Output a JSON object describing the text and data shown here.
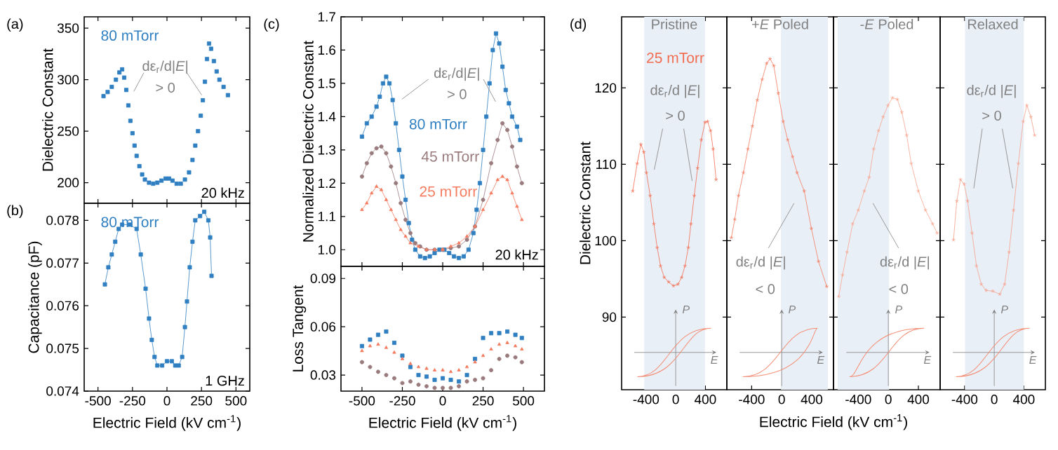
{
  "chart_data": [
    {
      "type": "scatter",
      "marker": "square",
      "xlim": [
        -600,
        600
      ],
      "ylim": [
        180,
        361
      ],
      "xticks": [
        -500,
        -250,
        0,
        250,
        500
      ],
      "yticks": [
        200,
        250,
        300,
        350
      ],
      "tick_labels": "y",
      "ylabel": "Dielectric Constant",
      "annotations": [
        "(a)",
        "dε$_{r}$/d|*E*|",
        "> 0",
        "20 kHz"
      ],
      "series": [
        {
          "name": "80 mTorr",
          "color": "#2f7fc1",
          "x": [
            -460,
            -430,
            -400,
            -370,
            -345,
            -325,
            -310,
            -295,
            -280,
            -265,
            -250,
            -235,
            -220,
            -200,
            -180,
            -160,
            -130,
            -100,
            -70,
            -40,
            -10,
            15,
            40,
            70,
            100,
            130,
            160,
            185,
            205,
            225,
            245,
            260,
            275,
            290,
            305,
            320,
            340,
            360,
            380,
            410,
            442
          ],
          "values": [
            284,
            288,
            293,
            300,
            307,
            310,
            302,
            290,
            275,
            260,
            248,
            236,
            226,
            216,
            208,
            203,
            200,
            199,
            200,
            202,
            204,
            204,
            202,
            199,
            199,
            203,
            210,
            222,
            236,
            250,
            265,
            280,
            298,
            320,
            335,
            330,
            318,
            308,
            300,
            293,
            285
          ]
        }
      ]
    },
    {
      "type": "line",
      "marker": "square",
      "xlim": [
        -600,
        600
      ],
      "ylim": [
        0.074,
        0.0784
      ],
      "xticks": [
        -500,
        -250,
        0,
        250,
        500
      ],
      "yticks": [
        0.074,
        0.075,
        0.076,
        0.077,
        0.078
      ],
      "xlabel": "Electric Field (kV cm$^{-1}$)",
      "ylabel": "Capacitance (pF)",
      "annotations": [
        "(b)",
        "1 GHz"
      ],
      "series": [
        {
          "name": "80 mTorr",
          "color": "#2f7fc1",
          "x": [
            -450,
            -425,
            -400,
            -375,
            -350,
            -325,
            -270,
            -220,
            -190,
            -155,
            -130,
            -110,
            -90,
            -70,
            -35,
            0,
            35,
            60,
            85,
            110,
            130,
            145,
            165,
            185,
            205,
            240,
            270,
            300,
            313,
            323
          ],
          "values": [
            0.0765,
            0.0769,
            0.0772,
            0.0775,
            0.0778,
            0.0779,
            0.0779,
            0.0778,
            0.0772,
            0.0764,
            0.0757,
            0.0752,
            0.0748,
            0.0746,
            0.0746,
            0.0747,
            0.0747,
            0.0746,
            0.0746,
            0.0748,
            0.0755,
            0.0761,
            0.0769,
            0.0775,
            0.078,
            0.0781,
            0.0782,
            0.078,
            0.0776,
            0.0767
          ]
        }
      ]
    },
    {
      "type": "line",
      "xlim": [
        -630,
        630
      ],
      "ylim": [
        0.95,
        1.7
      ],
      "xticks": [
        -500,
        -250,
        0,
        250,
        500
      ],
      "yticks": [
        {
          "value": 1.0,
          "label": "1.0"
        },
        1.1,
        1.2,
        1.3,
        1.4,
        1.5,
        1.6,
        1.7
      ],
      "tick_labels": "y",
      "ylabel": "Normalized Dielectric Constant",
      "annotations": [
        "(c)",
        "dε$_{r}$/d|*E*|",
        "> 0",
        "20 kHz"
      ],
      "series": [
        {
          "name": "80 mTorr",
          "color": "#2f7fc1",
          "marker": "square",
          "x": [
            -500,
            -470,
            -440,
            -410,
            -390,
            -370,
            -350,
            -330,
            -310,
            -290,
            -270,
            -250,
            -230,
            -210,
            -190,
            -170,
            -140,
            -110,
            -80,
            -50,
            -20,
            10,
            40,
            70,
            100,
            130,
            160,
            190,
            210,
            230,
            250,
            270,
            290,
            310,
            330,
            350,
            370,
            390,
            410,
            430,
            460,
            480
          ],
          "values": [
            1.34,
            1.38,
            1.4,
            1.43,
            1.46,
            1.5,
            1.52,
            1.5,
            1.45,
            1.38,
            1.3,
            1.22,
            1.15,
            1.08,
            1.03,
            1.0,
            0.98,
            0.975,
            0.98,
            0.99,
            1.0,
            1.0,
            0.99,
            0.98,
            0.975,
            0.98,
            1.0,
            1.05,
            1.12,
            1.2,
            1.3,
            1.4,
            1.5,
            1.6,
            1.65,
            1.62,
            1.55,
            1.48,
            1.44,
            1.4,
            1.37,
            1.33
          ]
        },
        {
          "name": "45 mTorr",
          "color": "#9a7b7d",
          "marker": "circle",
          "x": [
            -500,
            -470,
            -440,
            -410,
            -380,
            -350,
            -320,
            -290,
            -260,
            -230,
            -200,
            -170,
            -140,
            -100,
            -50,
            0,
            50,
            100,
            150,
            200,
            250,
            300,
            340,
            370,
            400,
            430,
            460,
            490
          ],
          "values": [
            1.22,
            1.26,
            1.29,
            1.305,
            1.31,
            1.29,
            1.25,
            1.2,
            1.14,
            1.09,
            1.05,
            1.02,
            1.01,
            1.0,
            1.0,
            1.0,
            1.005,
            1.01,
            1.03,
            1.07,
            1.15,
            1.26,
            1.33,
            1.38,
            1.36,
            1.31,
            1.25,
            1.2
          ]
        },
        {
          "name": "25 mTorr",
          "color": "#f47b5f",
          "marker": "triangle",
          "x": [
            -500,
            -470,
            -440,
            -410,
            -380,
            -350,
            -320,
            -290,
            -260,
            -230,
            -200,
            -150,
            -100,
            -50,
            0,
            50,
            100,
            150,
            200,
            250,
            300,
            340,
            370,
            400,
            430,
            460,
            490
          ],
          "values": [
            1.12,
            1.14,
            1.17,
            1.19,
            1.18,
            1.15,
            1.12,
            1.09,
            1.06,
            1.04,
            1.02,
            1.01,
            1.0,
            1.0,
            1.0,
            1.01,
            1.02,
            1.04,
            1.07,
            1.12,
            1.17,
            1.21,
            1.22,
            1.21,
            1.17,
            1.13,
            1.09
          ]
        }
      ]
    },
    {
      "type": "scatter",
      "xlim": [
        -630,
        630
      ],
      "ylim": [
        0.02,
        0.0975
      ],
      "xticks": [
        -500,
        -250,
        0,
        250,
        500
      ],
      "yticks": [
        0.03,
        0.06,
        0.09
      ],
      "xlabel": "Electric Field (kV cm$^{-1}$)",
      "ylabel": "Loss Tangent",
      "x": [
        -500,
        -450,
        -400,
        -350,
        -300,
        -250,
        -200,
        -150,
        -100,
        -50,
        0,
        50,
        100,
        150,
        200,
        250,
        300,
        350,
        400,
        450,
        490
      ],
      "series": [
        {
          "color": "#2f7fc1",
          "marker": "square",
          "values": [
            0.048,
            0.052,
            0.055,
            0.057,
            0.05,
            0.042,
            0.035,
            0.03,
            0.029,
            0.027,
            0.028,
            0.027,
            0.026,
            0.03,
            0.04,
            0.053,
            0.056,
            0.056,
            0.057,
            0.055,
            0.053
          ]
        },
        {
          "color": "#9a7b7d",
          "marker": "circle",
          "values": [
            0.038,
            0.035,
            0.032,
            0.03,
            0.028,
            0.025,
            0.026,
            0.024,
            0.023,
            0.022,
            0.022,
            0.022,
            0.023,
            0.026,
            0.027,
            0.028,
            0.033,
            0.04,
            0.042,
            0.041,
            0.038
          ]
        },
        {
          "color": "#f47b5f",
          "marker": "triangle",
          "values": [
            0.045,
            0.048,
            0.049,
            0.047,
            0.044,
            0.04,
            0.037,
            0.035,
            0.034,
            0.033,
            0.033,
            0.032,
            0.033,
            0.035,
            0.038,
            0.042,
            0.046,
            0.049,
            0.05,
            0.048,
            0.046
          ]
        }
      ]
    },
    {
      "type": "line",
      "marker": "cross",
      "title": "Pristine",
      "xlim": [
        -730,
        690
      ],
      "ylim": [
        80.5,
        129.3
      ],
      "xticks": [
        -400,
        0,
        400
      ],
      "yticks": [
        90,
        100,
        110,
        120
      ],
      "ylabel": "Dielectric Constant",
      "annotations": [
        "(d)",
        "dε$_{r}$/d |*E*|",
        "> 0",
        "P",
        "E"
      ],
      "bands": [
        {
          "axis": "x",
          "from": -425,
          "to": 395,
          "color": "#e9eff7"
        }
      ],
      "x": [
        -580,
        -520,
        -470,
        -430,
        -395,
        -345,
        -295,
        -250,
        -205,
        -155,
        -95,
        -30,
        30,
        80,
        125,
        170,
        205,
        250,
        295,
        345,
        395,
        430,
        470,
        505,
        545
      ],
      "series": [
        {
          "name": "25 mTorr",
          "color": "#f26c50",
          "values": [
            106.5,
            110.1,
            112.6,
            111.6,
            108.9,
            105.9,
            102.2,
            99.1,
            96.7,
            95.2,
            94.6,
            94.1,
            94.3,
            95.2,
            96.7,
            99.1,
            102.2,
            105.9,
            109.5,
            113.2,
            115.5,
            115.6,
            114.4,
            112,
            108
          ]
        }
      ]
    },
    {
      "type": "line",
      "marker": "cross",
      "title": "+*E* Poled",
      "xlim": [
        -730,
        690
      ],
      "ylim": [
        80.5,
        129.3
      ],
      "xticks": [
        -400,
        0,
        400
      ],
      "yticks": [
        90,
        100,
        110,
        120
      ],
      "tick_labels": "x",
      "xlabel": "Electric Field (kV cm$^{-1}$)",
      "annotations": [
        "dε$_{r}$/d |*E*|",
        "< 0",
        "P",
        "E"
      ],
      "bands": [
        {
          "axis": "x",
          "from": -10,
          "to": 615,
          "color": "#e9eff7"
        }
      ],
      "x": [
        -670,
        -625,
        -575,
        -510,
        -450,
        -390,
        -325,
        -260,
        -200,
        -155,
        -105,
        -45,
        20,
        80,
        145,
        205,
        300,
        395,
        490,
        600
      ],
      "series": [
        {
          "color": "#f47a5e",
          "values": [
            100.4,
            102.8,
            105.9,
            108.9,
            112,
            115,
            118.4,
            121.1,
            123.2,
            123.8,
            122.9,
            119.3,
            115.6,
            113.2,
            111,
            108.9,
            106.5,
            101.6,
            97.3,
            94
          ]
        }
      ]
    },
    {
      "type": "line",
      "marker": "cross",
      "title": "-*E* Poled",
      "xlim": [
        -730,
        690
      ],
      "ylim": [
        80.5,
        129.3
      ],
      "xticks": [
        -400,
        0,
        400
      ],
      "yticks": [
        90,
        100,
        110,
        120
      ],
      "tick_labels": "x",
      "annotations": [
        "dε$_{r}$/d |*E*|",
        "< 0",
        "P",
        "E"
      ],
      "bands": [
        {
          "axis": "x",
          "from": -675,
          "to": 10,
          "color": "#e9eff7"
        }
      ],
      "x": [
        -660,
        -610,
        -550,
        -475,
        -400,
        -320,
        -255,
        -195,
        -130,
        -70,
        -5,
        55,
        120,
        180,
        245,
        305,
        400,
        495,
        590,
        650
      ],
      "series": [
        {
          "color": "#f8a48e",
          "values": [
            92.7,
            95.5,
            98.5,
            102.2,
            104,
            106.5,
            108.3,
            112,
            114.4,
            116.2,
            117.7,
            118.7,
            118.5,
            116.8,
            113.8,
            110.1,
            106.5,
            104,
            102.2,
            101
          ]
        }
      ]
    },
    {
      "type": "line",
      "marker": "cross",
      "title": "Relaxed",
      "xlim": [
        -730,
        690
      ],
      "ylim": [
        80.5,
        129.3
      ],
      "xticks": [
        -400,
        0,
        400
      ],
      "yticks": [
        90,
        100,
        110,
        120
      ],
      "tick_labels": "x",
      "annotations": [
        "dε$_{r}$/d |*E*|",
        "> 0",
        "P",
        "E"
      ],
      "bands": [
        {
          "axis": "x",
          "from": -395,
          "to": 400,
          "color": "#e9eff7"
        }
      ],
      "x": [
        -550,
        -505,
        -455,
        -405,
        -360,
        -300,
        -240,
        -175,
        -110,
        -20,
        75,
        140,
        200,
        260,
        325,
        390,
        440,
        495,
        545
      ],
      "series": [
        {
          "color": "#f6a08a",
          "values": [
            100.1,
            105.2,
            108,
            107.4,
            105.2,
            101,
            96.7,
            94.3,
            93.5,
            93.4,
            93,
            94.3,
            98.5,
            104,
            110.1,
            115.6,
            117.7,
            116.2,
            113.8
          ]
        }
      ]
    }
  ]
}
